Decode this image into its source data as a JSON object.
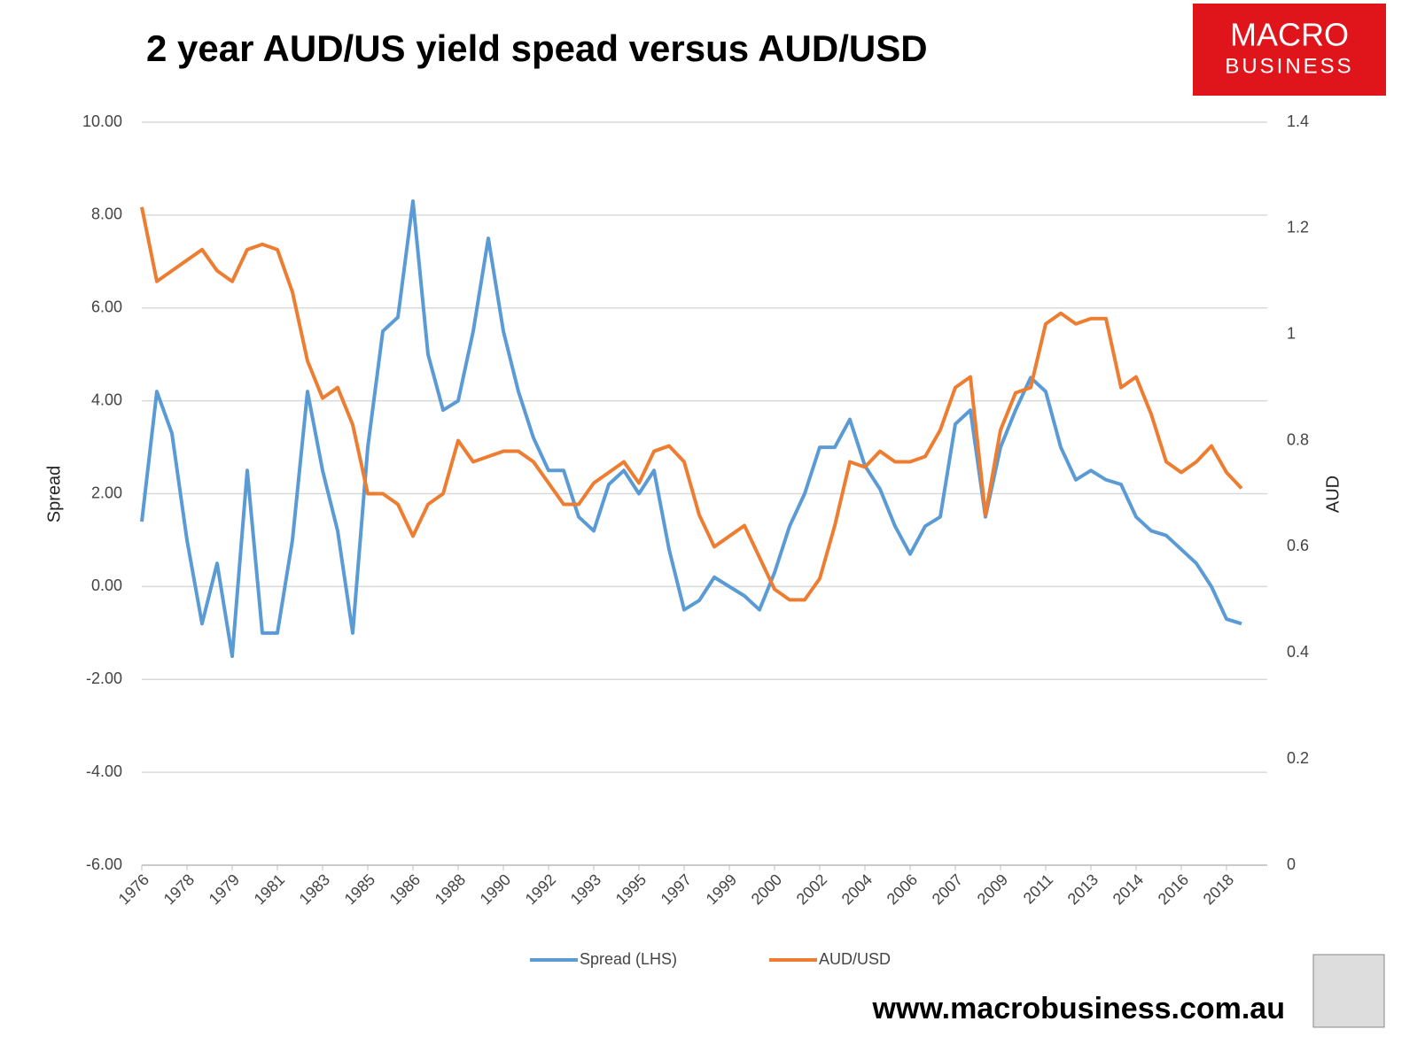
{
  "logo": {
    "line1": "MACRO",
    "line2": "BUSINESS"
  },
  "footer": "www.macrobusiness.com.au",
  "chart_data": {
    "type": "line",
    "title": "2 year AUD/US yield spead versus AUD/USD",
    "ylabel": "Spread",
    "y2label": "AUD",
    "categories": [
      "1976",
      null,
      null,
      "1978",
      null,
      null,
      "1979",
      null,
      null,
      "1981",
      null,
      null,
      "1983",
      null,
      null,
      "1985",
      null,
      null,
      "1986",
      null,
      null,
      "1988",
      null,
      null,
      "1990",
      null,
      null,
      "1992",
      null,
      null,
      "1993",
      null,
      null,
      "1995",
      null,
      null,
      "1997",
      null,
      null,
      "1999",
      null,
      null,
      "2000",
      null,
      null,
      "2002",
      null,
      null,
      "2004",
      null,
      null,
      "2006",
      null,
      null,
      "2007",
      null,
      null,
      "2009",
      null,
      null,
      "2011",
      null,
      null,
      "2013",
      null,
      null,
      "2014",
      null,
      null,
      "2016",
      null,
      null,
      "2018",
      null
    ],
    "series": [
      {
        "name": "Spread (LHS)",
        "color": "#5b9bd5",
        "axis": "y",
        "values": [
          1.4,
          4.2,
          3.3,
          1.0,
          -0.8,
          0.5,
          -1.5,
          2.5,
          -1.0,
          -1.0,
          1.0,
          4.2,
          2.5,
          1.2,
          -1.0,
          3.0,
          5.5,
          5.8,
          8.3,
          5.0,
          3.8,
          4.0,
          5.5,
          7.5,
          5.5,
          4.2,
          3.2,
          2.5,
          2.5,
          1.5,
          1.2,
          2.2,
          2.5,
          2.0,
          2.5,
          0.8,
          -0.5,
          -0.3,
          0.2,
          0.0,
          -0.2,
          -0.5,
          0.3,
          1.3,
          2.0,
          3.0,
          3.0,
          3.6,
          2.6,
          2.1,
          1.3,
          0.7,
          1.3,
          1.5,
          3.5,
          3.8,
          1.5,
          3.0,
          3.8,
          4.5,
          4.2,
          3.0,
          2.3,
          2.5,
          2.3,
          2.2,
          1.5,
          1.2,
          1.1,
          0.8,
          0.5,
          0.0,
          -0.7,
          -0.8
        ]
      },
      {
        "name": "AUD/USD",
        "color": "#ed7d31",
        "axis": "y2",
        "values": [
          1.24,
          1.1,
          1.12,
          1.14,
          1.16,
          1.12,
          1.1,
          1.16,
          1.17,
          1.16,
          1.08,
          0.95,
          0.88,
          0.9,
          0.83,
          0.7,
          0.7,
          0.68,
          0.62,
          0.68,
          0.7,
          0.8,
          0.76,
          0.77,
          0.78,
          0.78,
          0.76,
          0.72,
          0.68,
          0.68,
          0.72,
          0.74,
          0.76,
          0.72,
          0.78,
          0.79,
          0.76,
          0.66,
          0.6,
          0.62,
          0.64,
          0.58,
          0.52,
          0.5,
          0.5,
          0.54,
          0.64,
          0.76,
          0.75,
          0.78,
          0.76,
          0.76,
          0.77,
          0.82,
          0.9,
          0.92,
          0.66,
          0.82,
          0.89,
          0.9,
          1.02,
          1.04,
          1.02,
          1.03,
          1.03,
          0.9,
          0.92,
          0.85,
          0.76,
          0.74,
          0.76,
          0.79,
          0.74,
          0.71
        ]
      }
    ],
    "ylim": [
      -6,
      10
    ],
    "yticks": [
      {
        "value": -6,
        "label": "-6.00"
      },
      {
        "value": -4,
        "label": "-4.00"
      },
      {
        "value": -2,
        "label": "-2.00"
      },
      {
        "value": 0,
        "label": "0.00"
      },
      {
        "value": 2,
        "label": "2.00"
      },
      {
        "value": 4,
        "label": "4.00"
      },
      {
        "value": 6,
        "label": "6.00"
      },
      {
        "value": 8,
        "label": "8.00"
      },
      {
        "value": 10,
        "label": "10.00"
      }
    ],
    "y2lim": [
      0,
      1.4
    ],
    "y2ticks": [
      0,
      0.2,
      0.4,
      0.6,
      0.8,
      1,
      1.2,
      1.4
    ],
    "grid": true,
    "legend": "bottom"
  }
}
